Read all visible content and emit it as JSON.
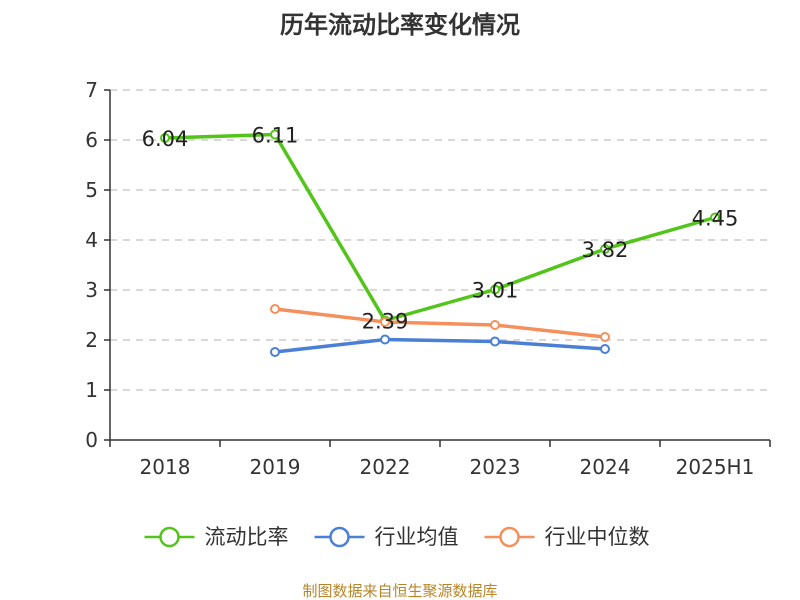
{
  "chart_data": {
    "type": "line",
    "title": "历年流动比率变化情况",
    "categories": [
      "2018",
      "2019",
      "2022",
      "2023",
      "2024",
      "2025H1"
    ],
    "y_ticks": [
      "0",
      "1",
      "2",
      "3",
      "4",
      "5",
      "6",
      "7"
    ],
    "ylim": [
      0,
      7
    ],
    "grid": true,
    "legend_position": "bottom",
    "series": [
      {
        "name": "流动比率",
        "color": "#52c41a",
        "values": [
          6.04,
          6.11,
          2.39,
          3.01,
          3.82,
          4.45
        ],
        "labels": [
          "6.04",
          "6.11",
          "2.39",
          "3.01",
          "3.82",
          "4.45"
        ]
      },
      {
        "name": "行业均值",
        "color": "#4a7fd6",
        "values": [
          null,
          1.76,
          2.01,
          1.97,
          1.82,
          null
        ]
      },
      {
        "name": "行业中位数",
        "color": "#f5905c",
        "values": [
          null,
          2.62,
          2.36,
          2.3,
          2.06,
          null
        ]
      }
    ]
  },
  "source": "制图数据来自恒生聚源数据库"
}
